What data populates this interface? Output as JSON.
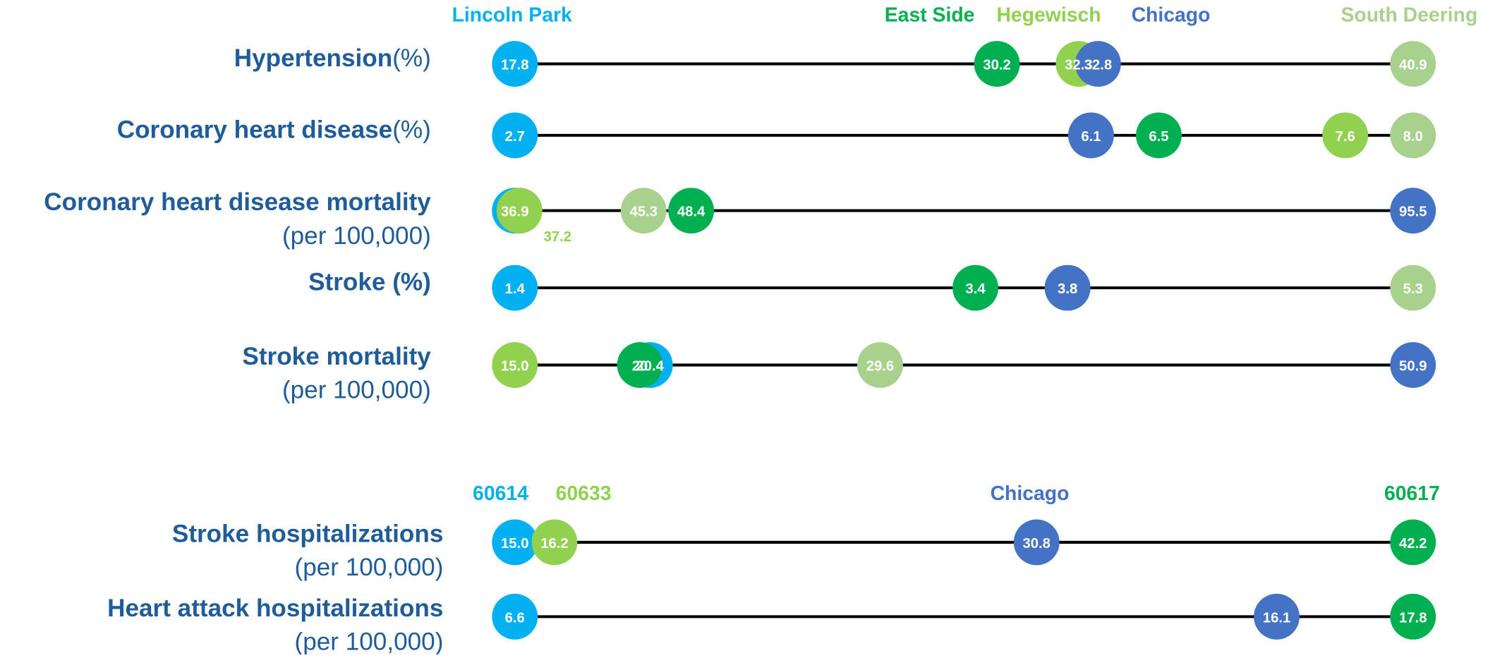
{
  "chart_data": [
    {
      "type": "dot",
      "categories": [
        "Hypertension",
        "Coronary heart disease",
        "Coronary heart disease mortality",
        "Stroke (%)",
        "Stroke mortality"
      ],
      "category_units": [
        "(%)",
        "(%)",
        "(per 100,000)",
        null,
        "(per 100,000)"
      ],
      "series": [
        {
          "name": "Lincoln Park",
          "color": "#00b0f0",
          "values": [
            17.8,
            2.7,
            36.9,
            1.4,
            20.4
          ],
          "value_labels": [
            "17.8",
            "2.7",
            "36.9",
            "1.4",
            "20.4"
          ]
        },
        {
          "name": "East Side",
          "color": "#00b050",
          "values": [
            30.2,
            6.5,
            48.4,
            3.4,
            20
          ],
          "value_labels": [
            "30.2",
            "6.5",
            "48.4",
            "3.4",
            "20"
          ]
        },
        {
          "name": "Hegewisch",
          "color": "#92d050",
          "values": [
            32.3,
            7.6,
            37.2,
            3.8,
            15.0
          ],
          "value_labels": [
            "32.3",
            "7.6",
            "37.2",
            "3.8",
            "15.0"
          ]
        },
        {
          "name": "Chicago",
          "color": "#4472c4",
          "values": [
            32.8,
            6.1,
            95.5,
            3.8,
            50.9
          ],
          "value_labels": [
            "32.8",
            "6.1",
            "95.5",
            "3.8",
            "50.9"
          ]
        },
        {
          "name": "South Deering",
          "color": "#a9d18e",
          "values": [
            40.9,
            8.0,
            45.3,
            5.3,
            29.6
          ],
          "value_labels": [
            "40.9",
            "8.0",
            "45.3",
            "5.3",
            "29.6"
          ]
        }
      ]
    },
    {
      "type": "dot",
      "categories": [
        "Stroke hospitalizations",
        "Heart attack hospitalizations"
      ],
      "category_units": [
        "(per 100,000)",
        "(per 100,000)"
      ],
      "series": [
        {
          "name": "60614",
          "color": "#00b0f0",
          "values": [
            15.0,
            6.6
          ],
          "value_labels": [
            "15.0",
            "6.6"
          ]
        },
        {
          "name": "60633",
          "color": "#92d050",
          "values": [
            16.2,
            null
          ],
          "value_labels": [
            "16.2",
            null
          ]
        },
        {
          "name": "Chicago",
          "color": "#4472c4",
          "values": [
            30.8,
            16.1
          ],
          "value_labels": [
            "30.8",
            "16.1"
          ]
        },
        {
          "name": "60617",
          "color": "#00b050",
          "values": [
            42.2,
            17.8
          ],
          "value_labels": [
            "42.2",
            "17.8"
          ]
        }
      ]
    }
  ]
}
